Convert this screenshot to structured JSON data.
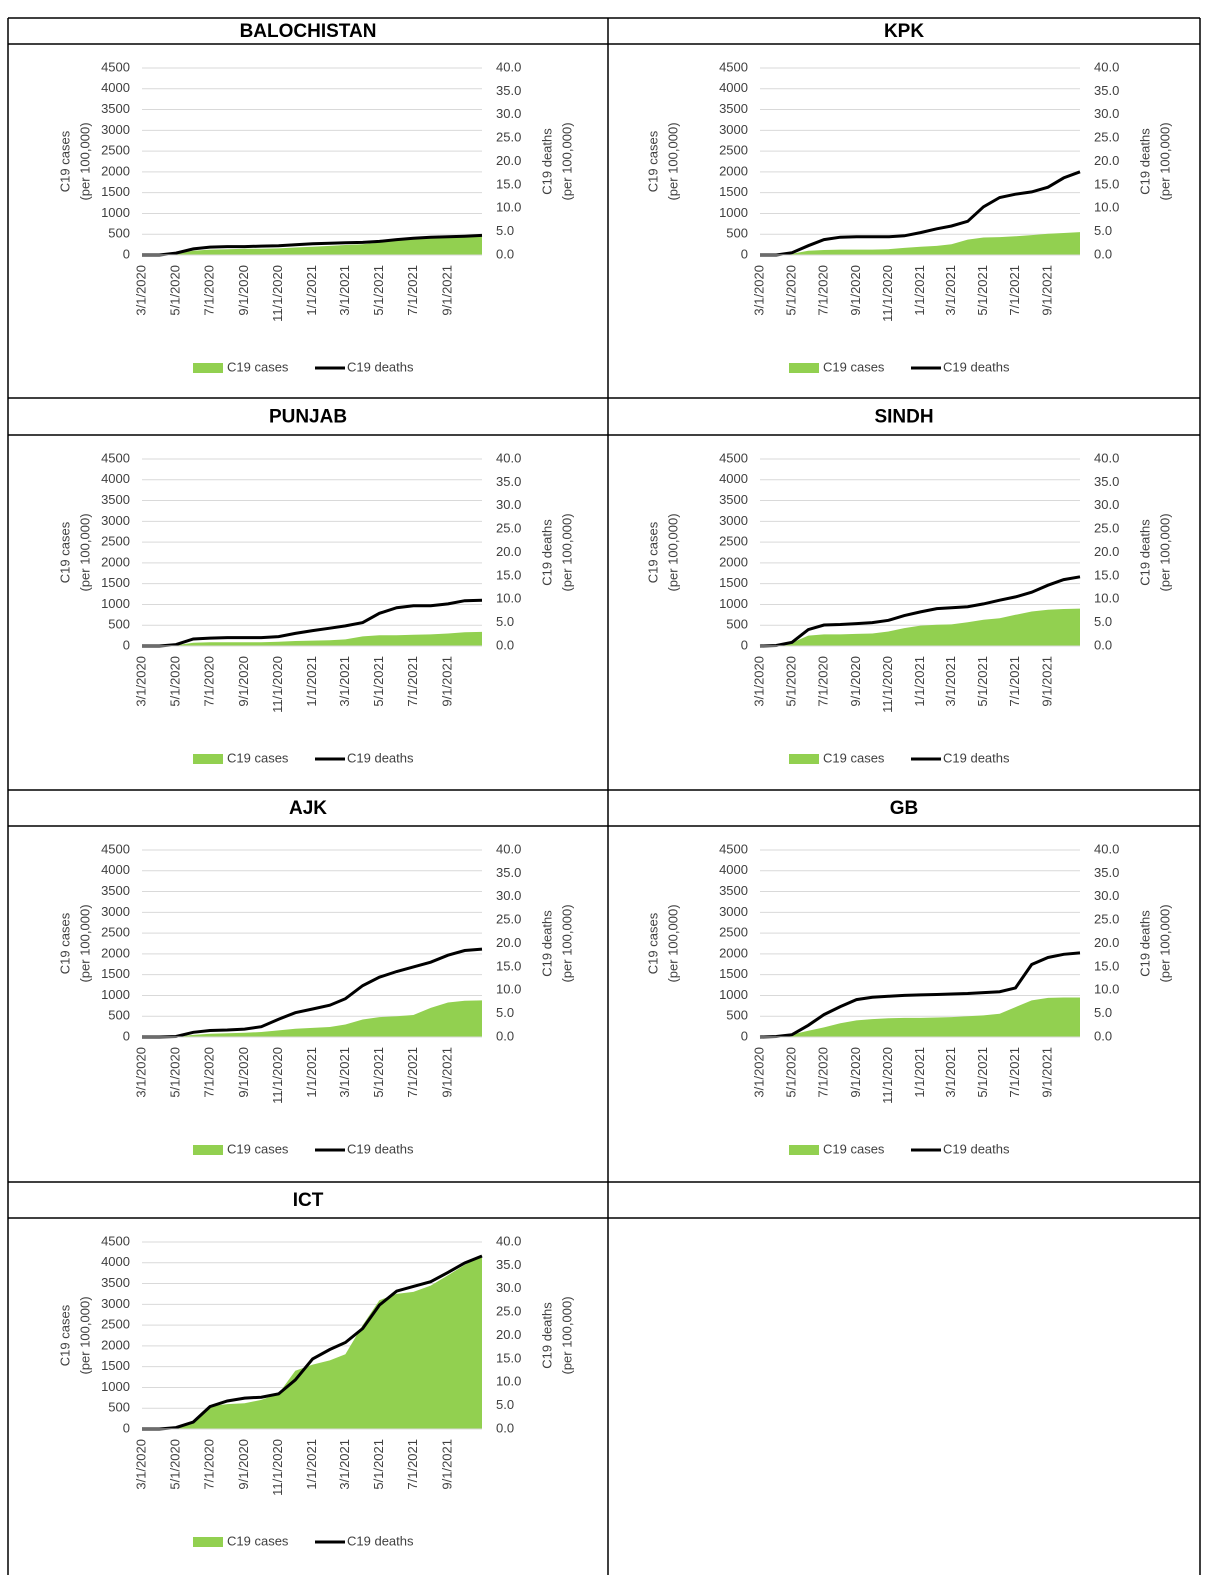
{
  "chart_data": [
    {
      "type": "area-line",
      "title": "BALOCHISTAN",
      "y_label": [
        "C19 cases",
        "(per 100,000)"
      ],
      "y2_label": [
        "C19 deaths",
        "(per 100,000)"
      ],
      "x": [
        "3/1/2020",
        "4/1/2020",
        "5/1/2020",
        "6/1/2020",
        "7/1/2020",
        "8/1/2020",
        "9/1/2020",
        "10/1/2020",
        "11/1/2020",
        "12/1/2020",
        "1/1/2021",
        "2/1/2021",
        "3/1/2021",
        "4/1/2021",
        "5/1/2021",
        "6/1/2021",
        "7/1/2021",
        "8/1/2021",
        "9/1/2021",
        "10/1/2021",
        "11/1/2021"
      ],
      "xlim": [
        "3/1/2020",
        "11/1/2021"
      ],
      "xticks": [
        "3/1/2020",
        "5/1/2020",
        "7/1/2020",
        "9/1/2020",
        "11/1/2020",
        "1/1/2021",
        "3/1/2021",
        "5/1/2021",
        "7/1/2021",
        "9/1/2021"
      ],
      "ylim": [
        0,
        4500
      ],
      "yticks": [
        0,
        500,
        1000,
        1500,
        2000,
        2500,
        3000,
        3500,
        4000,
        4500
      ],
      "y2lim": [
        0,
        40
      ],
      "y2ticks": [
        {
          "value": 0,
          "label": "0.0"
        },
        {
          "value": 5,
          "label": "5.0"
        },
        {
          "value": 10,
          "label": "10.0"
        },
        {
          "value": 15,
          "label": "15.0"
        },
        {
          "value": 20,
          "label": "20.0"
        },
        {
          "value": 25,
          "label": "25.0"
        },
        {
          "value": 30,
          "label": "30.0"
        },
        {
          "value": 35,
          "label": "35.0"
        },
        {
          "value": 40,
          "label": "40.0"
        }
      ],
      "series": [
        {
          "name": "C19 cases",
          "color": "#92d050",
          "values": [
            0,
            0,
            30,
            100,
            130,
            140,
            150,
            150,
            160,
            180,
            200,
            220,
            240,
            260,
            300,
            350,
            380,
            400,
            420,
            430,
            440
          ]
        },
        {
          "name": "C19 deaths",
          "color": "#000000",
          "axis": "y2",
          "values": [
            0,
            0,
            0.4,
            1.3,
            1.7,
            1.8,
            1.8,
            1.9,
            2.0,
            2.2,
            2.4,
            2.5,
            2.6,
            2.7,
            2.9,
            3.3,
            3.6,
            3.8,
            3.9,
            4.0,
            4.2
          ]
        }
      ]
    },
    {
      "type": "area-line",
      "title": "KPK",
      "y_label": [
        "C19 cases",
        "(per 100,000)"
      ],
      "y2_label": [
        "C19 deaths",
        "(per 100,000)"
      ],
      "x": [
        "3/1/2020",
        "4/1/2020",
        "5/1/2020",
        "6/1/2020",
        "7/1/2020",
        "8/1/2020",
        "9/1/2020",
        "10/1/2020",
        "11/1/2020",
        "12/1/2020",
        "1/1/2021",
        "2/1/2021",
        "3/1/2021",
        "4/1/2021",
        "5/1/2021",
        "6/1/2021",
        "7/1/2021",
        "8/1/2021",
        "9/1/2021",
        "10/1/2021",
        "11/1/2021"
      ],
      "xlim": [
        "3/1/2020",
        "11/1/2021"
      ],
      "xticks": [
        "3/1/2020",
        "5/1/2020",
        "7/1/2020",
        "9/1/2020",
        "11/1/2020",
        "1/1/2021",
        "3/1/2021",
        "5/1/2021",
        "7/1/2021",
        "9/1/2021"
      ],
      "ylim": [
        0,
        4500
      ],
      "yticks": [
        0,
        500,
        1000,
        1500,
        2000,
        2500,
        3000,
        3500,
        4000,
        4500
      ],
      "y2lim": [
        0,
        40
      ],
      "y2ticks": [
        {
          "value": 0,
          "label": "0.0"
        },
        {
          "value": 5,
          "label": "5.0"
        },
        {
          "value": 10,
          "label": "10.0"
        },
        {
          "value": 15,
          "label": "15.0"
        },
        {
          "value": 20,
          "label": "20.0"
        },
        {
          "value": 25,
          "label": "25.0"
        },
        {
          "value": 30,
          "label": "30.0"
        },
        {
          "value": 35,
          "label": "35.0"
        },
        {
          "value": 40,
          "label": "40.0"
        }
      ],
      "series": [
        {
          "name": "C19 cases",
          "color": "#92d050",
          "values": [
            0,
            0,
            30,
            100,
            120,
            130,
            130,
            130,
            140,
            170,
            200,
            220,
            260,
            370,
            420,
            430,
            450,
            480,
            510,
            530,
            550
          ]
        },
        {
          "name": "C19 deaths",
          "color": "#000000",
          "axis": "y2",
          "values": [
            0,
            0,
            0.5,
            2.0,
            3.3,
            3.8,
            3.9,
            3.9,
            3.9,
            4.1,
            4.8,
            5.6,
            6.2,
            7.2,
            10.3,
            12.3,
            13.0,
            13.5,
            14.5,
            16.5,
            17.8
          ]
        }
      ]
    },
    {
      "type": "area-line",
      "title": "PUNJAB",
      "y_label": [
        "C19 cases",
        "(per 100,000)"
      ],
      "y2_label": [
        "C19 deaths",
        "(per 100,000)"
      ],
      "x": [
        "3/1/2020",
        "4/1/2020",
        "5/1/2020",
        "6/1/2020",
        "7/1/2020",
        "8/1/2020",
        "9/1/2020",
        "10/1/2020",
        "11/1/2020",
        "12/1/2020",
        "1/1/2021",
        "2/1/2021",
        "3/1/2021",
        "4/1/2021",
        "5/1/2021",
        "6/1/2021",
        "7/1/2021",
        "8/1/2021",
        "9/1/2021",
        "10/1/2021",
        "11/1/2021"
      ],
      "xlim": [
        "3/1/2020",
        "11/1/2021"
      ],
      "xticks": [
        "3/1/2020",
        "5/1/2020",
        "7/1/2020",
        "9/1/2020",
        "11/1/2020",
        "1/1/2021",
        "3/1/2021",
        "5/1/2021",
        "7/1/2021",
        "9/1/2021"
      ],
      "ylim": [
        0,
        4500
      ],
      "yticks": [
        0,
        500,
        1000,
        1500,
        2000,
        2500,
        3000,
        3500,
        4000,
        4500
      ],
      "y2lim": [
        0,
        40
      ],
      "y2ticks": [
        {
          "value": 0,
          "label": "0.0"
        },
        {
          "value": 5,
          "label": "5.0"
        },
        {
          "value": 10,
          "label": "10.0"
        },
        {
          "value": 15,
          "label": "15.0"
        },
        {
          "value": 20,
          "label": "20.0"
        },
        {
          "value": 25,
          "label": "25.0"
        },
        {
          "value": 30,
          "label": "30.0"
        },
        {
          "value": 35,
          "label": "35.0"
        },
        {
          "value": 40,
          "label": "40.0"
        }
      ],
      "series": [
        {
          "name": "C19 cases",
          "color": "#92d050",
          "values": [
            0,
            0,
            20,
            80,
            90,
            90,
            90,
            90,
            100,
            120,
            130,
            140,
            160,
            230,
            260,
            260,
            270,
            280,
            300,
            330,
            340
          ]
        },
        {
          "name": "C19 deaths",
          "color": "#000000",
          "axis": "y2",
          "values": [
            0,
            0,
            0.3,
            1.5,
            1.7,
            1.8,
            1.8,
            1.8,
            2.0,
            2.7,
            3.3,
            3.8,
            4.3,
            5.0,
            7.0,
            8.2,
            8.6,
            8.6,
            9.0,
            9.7,
            9.8
          ]
        }
      ]
    },
    {
      "type": "area-line",
      "title": "SINDH",
      "y_label": [
        "C19 cases",
        "(per 100,000)"
      ],
      "y2_label": [
        "C19 deaths",
        "(per 100,000)"
      ],
      "x": [
        "3/1/2020",
        "4/1/2020",
        "5/1/2020",
        "6/1/2020",
        "7/1/2020",
        "8/1/2020",
        "9/1/2020",
        "10/1/2020",
        "11/1/2020",
        "12/1/2020",
        "1/1/2021",
        "2/1/2021",
        "3/1/2021",
        "4/1/2021",
        "5/1/2021",
        "6/1/2021",
        "7/1/2021",
        "8/1/2021",
        "9/1/2021",
        "10/1/2021",
        "11/1/2021"
      ],
      "xlim": [
        "3/1/2020",
        "11/1/2021"
      ],
      "xticks": [
        "3/1/2020",
        "5/1/2020",
        "7/1/2020",
        "9/1/2020",
        "11/1/2020",
        "1/1/2021",
        "3/1/2021",
        "5/1/2021",
        "7/1/2021",
        "9/1/2021"
      ],
      "ylim": [
        0,
        4500
      ],
      "yticks": [
        0,
        500,
        1000,
        1500,
        2000,
        2500,
        3000,
        3500,
        4000,
        4500
      ],
      "y2lim": [
        0,
        40
      ],
      "y2ticks": [
        {
          "value": 0,
          "label": "0.0"
        },
        {
          "value": 5,
          "label": "5.0"
        },
        {
          "value": 10,
          "label": "10.0"
        },
        {
          "value": 15,
          "label": "15.0"
        },
        {
          "value": 20,
          "label": "20.0"
        },
        {
          "value": 25,
          "label": "25.0"
        },
        {
          "value": 30,
          "label": "30.0"
        },
        {
          "value": 35,
          "label": "35.0"
        },
        {
          "value": 40,
          "label": "40.0"
        }
      ],
      "series": [
        {
          "name": "C19 cases",
          "color": "#92d050",
          "values": [
            0,
            10,
            80,
            250,
            280,
            280,
            290,
            300,
            350,
            430,
            490,
            510,
            520,
            570,
            630,
            670,
            750,
            830,
            870,
            890,
            900
          ]
        },
        {
          "name": "C19 deaths",
          "color": "#000000",
          "axis": "y2",
          "values": [
            0,
            0.1,
            0.8,
            3.5,
            4.5,
            4.6,
            4.8,
            5.0,
            5.5,
            6.5,
            7.3,
            8.0,
            8.2,
            8.4,
            9.0,
            9.8,
            10.5,
            11.5,
            13.0,
            14.2,
            14.8
          ]
        }
      ]
    },
    {
      "type": "area-line",
      "title": "AJK",
      "y_label": [
        "C19 cases",
        "(per 100,000)"
      ],
      "y2_label": [
        "C19 deaths",
        "(per 100,000)"
      ],
      "x": [
        "3/1/2020",
        "4/1/2020",
        "5/1/2020",
        "6/1/2020",
        "7/1/2020",
        "8/1/2020",
        "9/1/2020",
        "10/1/2020",
        "11/1/2020",
        "12/1/2020",
        "1/1/2021",
        "2/1/2021",
        "3/1/2021",
        "4/1/2021",
        "5/1/2021",
        "6/1/2021",
        "7/1/2021",
        "8/1/2021",
        "9/1/2021",
        "10/1/2021",
        "11/1/2021"
      ],
      "xlim": [
        "3/1/2020",
        "11/1/2021"
      ],
      "xticks": [
        "3/1/2020",
        "5/1/2020",
        "7/1/2020",
        "9/1/2020",
        "11/1/2020",
        "1/1/2021",
        "3/1/2021",
        "5/1/2021",
        "7/1/2021",
        "9/1/2021"
      ],
      "ylim": [
        0,
        4500
      ],
      "yticks": [
        0,
        500,
        1000,
        1500,
        2000,
        2500,
        3000,
        3500,
        4000,
        4500
      ],
      "y2lim": [
        0,
        40
      ],
      "y2ticks": [
        {
          "value": 0,
          "label": "0.0"
        },
        {
          "value": 5,
          "label": "5.0"
        },
        {
          "value": 10,
          "label": "10.0"
        },
        {
          "value": 15,
          "label": "15.0"
        },
        {
          "value": 20,
          "label": "20.0"
        },
        {
          "value": 25,
          "label": "25.0"
        },
        {
          "value": 30,
          "label": "30.0"
        },
        {
          "value": 35,
          "label": "35.0"
        },
        {
          "value": 40,
          "label": "40.0"
        }
      ],
      "series": [
        {
          "name": "C19 cases",
          "color": "#92d050",
          "values": [
            0,
            0,
            10,
            50,
            80,
            90,
            100,
            120,
            160,
            200,
            220,
            240,
            300,
            420,
            480,
            500,
            530,
            700,
            830,
            870,
            880
          ]
        },
        {
          "name": "C19 deaths",
          "color": "#000000",
          "axis": "y2",
          "values": [
            0,
            0,
            0.1,
            1.0,
            1.4,
            1.5,
            1.7,
            2.2,
            3.8,
            5.2,
            6.0,
            6.8,
            8.2,
            11.0,
            12.8,
            14.0,
            15.0,
            16.0,
            17.5,
            18.5,
            18.8
          ]
        }
      ]
    },
    {
      "type": "area-line",
      "title": "GB",
      "y_label": [
        "C19 cases",
        "(per 100,000)"
      ],
      "y2_label": [
        "C19 deaths",
        "(per 100,000)"
      ],
      "x": [
        "3/1/2020",
        "4/1/2020",
        "5/1/2020",
        "6/1/2020",
        "7/1/2020",
        "8/1/2020",
        "9/1/2020",
        "10/1/2020",
        "11/1/2020",
        "12/1/2020",
        "1/1/2021",
        "2/1/2021",
        "3/1/2021",
        "4/1/2021",
        "5/1/2021",
        "6/1/2021",
        "7/1/2021",
        "8/1/2021",
        "9/1/2021",
        "10/1/2021",
        "11/1/2021"
      ],
      "xlim": [
        "3/1/2020",
        "11/1/2021"
      ],
      "xticks": [
        "3/1/2020",
        "5/1/2020",
        "7/1/2020",
        "9/1/2020",
        "11/1/2020",
        "1/1/2021",
        "3/1/2021",
        "5/1/2021",
        "7/1/2021",
        "9/1/2021"
      ],
      "ylim": [
        0,
        4500
      ],
      "yticks": [
        0,
        500,
        1000,
        1500,
        2000,
        2500,
        3000,
        3500,
        4000,
        4500
      ],
      "y2lim": [
        0,
        40
      ],
      "y2ticks": [
        {
          "value": 0,
          "label": "0.0"
        },
        {
          "value": 5,
          "label": "5.0"
        },
        {
          "value": 10,
          "label": "10.0"
        },
        {
          "value": 15,
          "label": "15.0"
        },
        {
          "value": 20,
          "label": "20.0"
        },
        {
          "value": 25,
          "label": "25.0"
        },
        {
          "value": 30,
          "label": "30.0"
        },
        {
          "value": 35,
          "label": "35.0"
        },
        {
          "value": 40,
          "label": "40.0"
        }
      ],
      "series": [
        {
          "name": "C19 cases",
          "color": "#92d050",
          "values": [
            0,
            10,
            60,
            150,
            230,
            330,
            400,
            430,
            450,
            460,
            460,
            470,
            480,
            500,
            520,
            560,
            720,
            880,
            940,
            950,
            950
          ]
        },
        {
          "name": "C19 deaths",
          "color": "#000000",
          "axis": "y2",
          "values": [
            0,
            0.1,
            0.5,
            2.5,
            4.8,
            6.5,
            8.0,
            8.5,
            8.7,
            8.9,
            9.0,
            9.1,
            9.2,
            9.3,
            9.5,
            9.7,
            10.5,
            15.5,
            17.0,
            17.7,
            18.0
          ]
        }
      ]
    },
    {
      "type": "area-line",
      "title": "ICT",
      "y_label": [
        "C19 cases",
        "(per 100,000)"
      ],
      "y2_label": [
        "C19 deaths",
        "(per 100,000)"
      ],
      "x": [
        "3/1/2020",
        "4/1/2020",
        "5/1/2020",
        "6/1/2020",
        "7/1/2020",
        "8/1/2020",
        "9/1/2020",
        "10/1/2020",
        "11/1/2020",
        "12/1/2020",
        "1/1/2021",
        "2/1/2021",
        "3/1/2021",
        "4/1/2021",
        "5/1/2021",
        "6/1/2021",
        "7/1/2021",
        "8/1/2021",
        "9/1/2021",
        "10/1/2021",
        "11/1/2021"
      ],
      "xlim": [
        "3/1/2020",
        "11/1/2021"
      ],
      "xticks": [
        "3/1/2020",
        "5/1/2020",
        "7/1/2020",
        "9/1/2020",
        "11/1/2020",
        "1/1/2021",
        "3/1/2021",
        "5/1/2021",
        "7/1/2021",
        "9/1/2021"
      ],
      "ylim": [
        0,
        4500
      ],
      "yticks": [
        0,
        500,
        1000,
        1500,
        2000,
        2500,
        3000,
        3500,
        4000,
        4500
      ],
      "y2lim": [
        0,
        40
      ],
      "y2ticks": [
        {
          "value": 0,
          "label": "0.0"
        },
        {
          "value": 5,
          "label": "5.0"
        },
        {
          "value": 10,
          "label": "10.0"
        },
        {
          "value": 15,
          "label": "15.0"
        },
        {
          "value": 20,
          "label": "20.0"
        },
        {
          "value": 25,
          "label": "25.0"
        },
        {
          "value": 30,
          "label": "30.0"
        },
        {
          "value": 35,
          "label": "35.0"
        },
        {
          "value": 40,
          "label": "40.0"
        }
      ],
      "series": [
        {
          "name": "C19 cases",
          "color": "#92d050",
          "values": [
            0,
            0,
            50,
            150,
            550,
            600,
            620,
            700,
            850,
            1400,
            1550,
            1650,
            1800,
            2500,
            3100,
            3250,
            3300,
            3450,
            3700,
            3950,
            4150
          ]
        },
        {
          "name": "C19 deaths",
          "color": "#000000",
          "axis": "y2",
          "values": [
            0,
            0,
            0.3,
            1.5,
            4.8,
            6.0,
            6.6,
            6.8,
            7.5,
            10.5,
            15.0,
            17.0,
            18.5,
            21.5,
            26.5,
            29.5,
            30.5,
            31.5,
            33.5,
            35.5,
            37.0
          ]
        }
      ]
    }
  ]
}
